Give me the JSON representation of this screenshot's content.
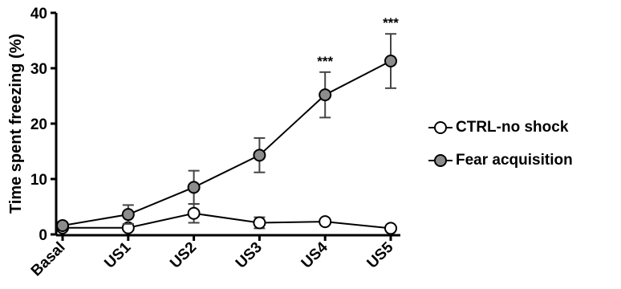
{
  "chart_data": {
    "type": "line",
    "categories": [
      "Basal",
      "US1",
      "US2",
      "US3",
      "US4",
      "US5"
    ],
    "ylabel": "Time spent freezing (%)",
    "xlabel": "",
    "ylim": [
      0,
      40
    ],
    "yticks": [
      0,
      10,
      20,
      30,
      40
    ],
    "grid": false,
    "legend_position": "right",
    "series": [
      {
        "name": "CTRL-no shock",
        "marker_fill": "#ffffff",
        "values": [
          1.2,
          1.2,
          3.8,
          2.1,
          2.3,
          1.1
        ],
        "errors": [
          0.4,
          0.4,
          1.7,
          1.0,
          0.4,
          0.4
        ]
      },
      {
        "name": "Fear acquisition",
        "marker_fill": "#8c8c8c",
        "values": [
          1.6,
          3.6,
          8.5,
          14.3,
          25.2,
          31.3
        ],
        "errors": [
          0.3,
          1.7,
          3.0,
          3.1,
          4.1,
          4.9
        ]
      }
    ],
    "annotations": [
      {
        "category": "US4",
        "text": "***"
      },
      {
        "category": "US5",
        "text": "***"
      }
    ]
  }
}
